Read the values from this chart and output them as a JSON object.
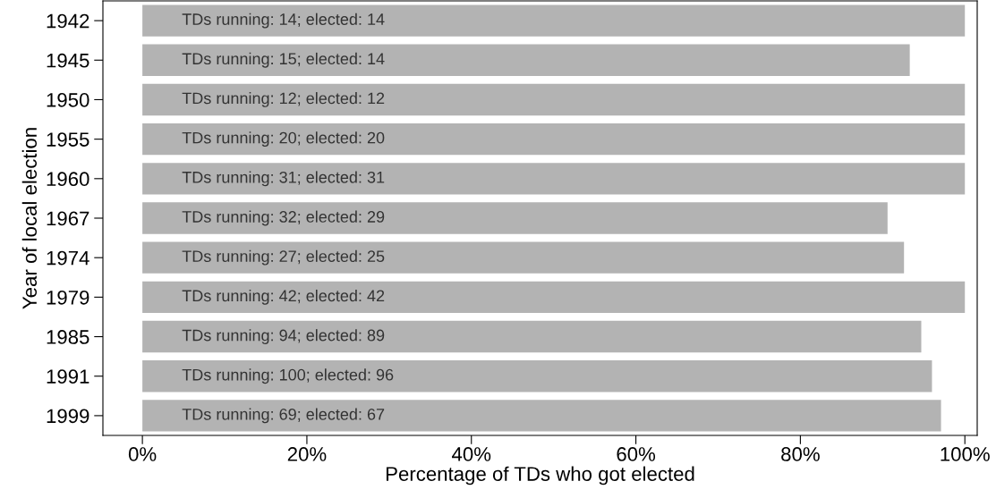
{
  "chart_data": {
    "type": "bar",
    "orientation": "horizontal",
    "xlabel": "Percentage of TDs who got elected",
    "ylabel": "Year of local election",
    "categories": [
      "1942",
      "1945",
      "1950",
      "1955",
      "1960",
      "1967",
      "1974",
      "1979",
      "1985",
      "1991",
      "1999"
    ],
    "values": [
      100,
      93.3,
      100,
      100,
      100,
      90.6,
      92.6,
      100,
      94.7,
      96,
      97.1
    ],
    "value_labels": [
      "TDs running: 14; elected: 14",
      "TDs running: 15; elected: 14",
      "TDs running: 12; elected: 12",
      "TDs running: 20; elected: 20",
      "TDs running: 31; elected: 31",
      "TDs running: 32; elected: 29",
      "TDs running: 27; elected: 25",
      "TDs running: 42; elected: 42",
      "TDs running: 94; elected: 89",
      "TDs running: 100; elected: 96",
      "TDs running: 69; elected: 67"
    ],
    "color": "#b3b3b3",
    "xlim": [
      -4.8,
      101.5
    ],
    "xticks": [
      {
        "value": 0,
        "label": "0%"
      },
      {
        "value": 20,
        "label": "20%"
      },
      {
        "value": 40,
        "label": "40%"
      },
      {
        "value": 60,
        "label": "60%"
      },
      {
        "value": 80,
        "label": "80%"
      },
      {
        "value": 100,
        "label": "100%"
      }
    ],
    "grid": false,
    "legend": false
  }
}
